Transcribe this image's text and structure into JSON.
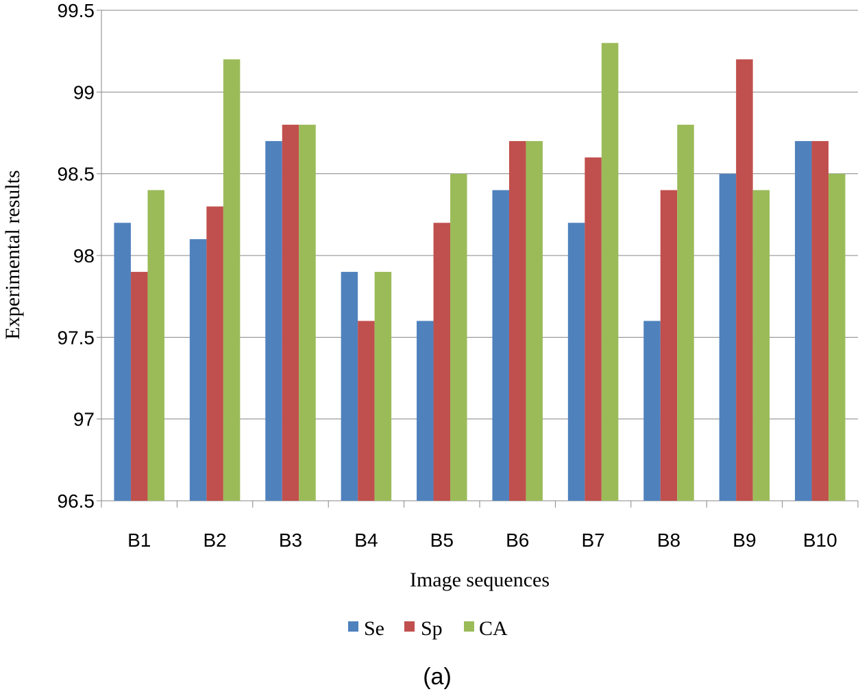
{
  "chart_data": {
    "type": "bar",
    "title": "",
    "xlabel": "Image sequences",
    "ylabel": "Experimental results",
    "ylim": [
      96.5,
      99.5
    ],
    "yticks": [
      96.5,
      97,
      97.5,
      98,
      98.5,
      99,
      99.5
    ],
    "ytick_labels": [
      "96.5",
      "97",
      "97.5",
      "98",
      "98.5",
      "99",
      "99.5"
    ],
    "grid": true,
    "legend_position": "bottom-center",
    "categories": [
      "B1",
      "B2",
      "B3",
      "B4",
      "B5",
      "B6",
      "B7",
      "B8",
      "B9",
      "B10"
    ],
    "series": [
      {
        "name": "Se",
        "color": "#4F81BD",
        "values": [
          98.2,
          98.1,
          98.7,
          97.9,
          97.6,
          98.4,
          98.2,
          97.6,
          98.5,
          98.7
        ]
      },
      {
        "name": "Sp",
        "color": "#C0504D",
        "values": [
          97.9,
          98.3,
          98.8,
          97.6,
          98.2,
          98.7,
          98.6,
          98.4,
          99.2,
          98.7
        ]
      },
      {
        "name": "CA",
        "color": "#9BBB59",
        "values": [
          98.4,
          99.2,
          98.8,
          97.9,
          98.5,
          98.7,
          99.3,
          98.8,
          98.4,
          98.5
        ]
      }
    ]
  },
  "caption": "(a)"
}
